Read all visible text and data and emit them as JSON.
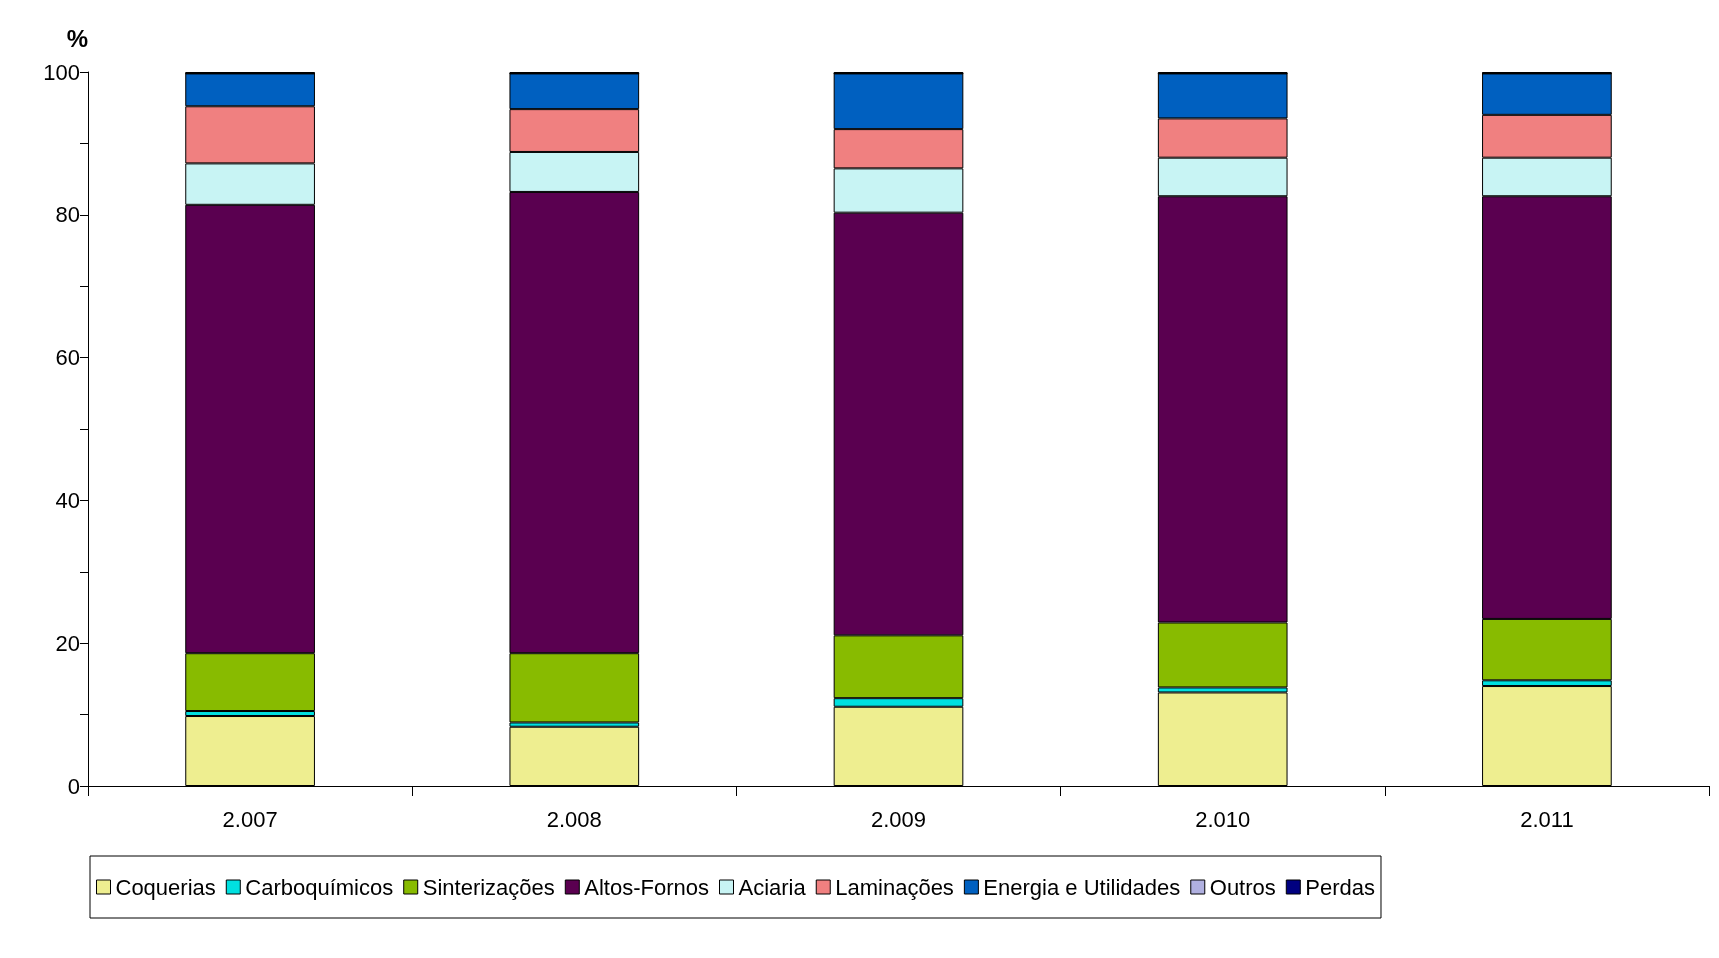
{
  "chart_data": {
    "type": "bar",
    "stacked": true,
    "ylabel": "%",
    "categories": [
      "2.007",
      "2.008",
      "2.009",
      "2.010",
      "2.011"
    ],
    "series": [
      {
        "name": "Coquerias",
        "color": "#eeee90",
        "values": [
          9.8,
          8.3,
          11.1,
          13.1,
          14.0
        ]
      },
      {
        "name": "Carboquímicos",
        "color": "#00e0e0",
        "values": [
          0.7,
          0.6,
          1.2,
          0.7,
          0.8
        ]
      },
      {
        "name": "Sinterizações",
        "color": "#88bb00",
        "values": [
          8.1,
          9.7,
          8.8,
          9.1,
          8.6
        ]
      },
      {
        "name": "Altos-Fornos",
        "color": "#5a0050",
        "values": [
          62.8,
          64.6,
          59.2,
          59.7,
          59.2
        ]
      },
      {
        "name": "Aciaria",
        "color": "#c8f4f4",
        "values": [
          5.8,
          5.6,
          6.2,
          5.4,
          5.4
        ]
      },
      {
        "name": "Laminações",
        "color": "#f08080",
        "values": [
          8.0,
          6.0,
          5.5,
          5.5,
          6.0
        ]
      },
      {
        "name": "Energia e Utilidades",
        "color": "#0060c0",
        "values": [
          4.6,
          5.0,
          7.8,
          6.3,
          5.8
        ]
      },
      {
        "name": "Outros",
        "color": "#b0b0e0",
        "values": [
          0,
          0,
          0,
          0,
          0
        ]
      },
      {
        "name": "Perdas",
        "color": "#000080",
        "values": [
          0.2,
          0.2,
          0.2,
          0.2,
          0.2
        ]
      }
    ],
    "ylim": [
      0,
      100
    ],
    "yticks": [
      0,
      {
        "value": 10,
        "label": null
      },
      20,
      {
        "value": 30,
        "label": null
      },
      40,
      {
        "value": 50,
        "label": null
      },
      60,
      {
        "value": 70,
        "label": null
      },
      80,
      {
        "value": 90,
        "label": null
      },
      100
    ],
    "grid": false,
    "legend": "bottom"
  }
}
